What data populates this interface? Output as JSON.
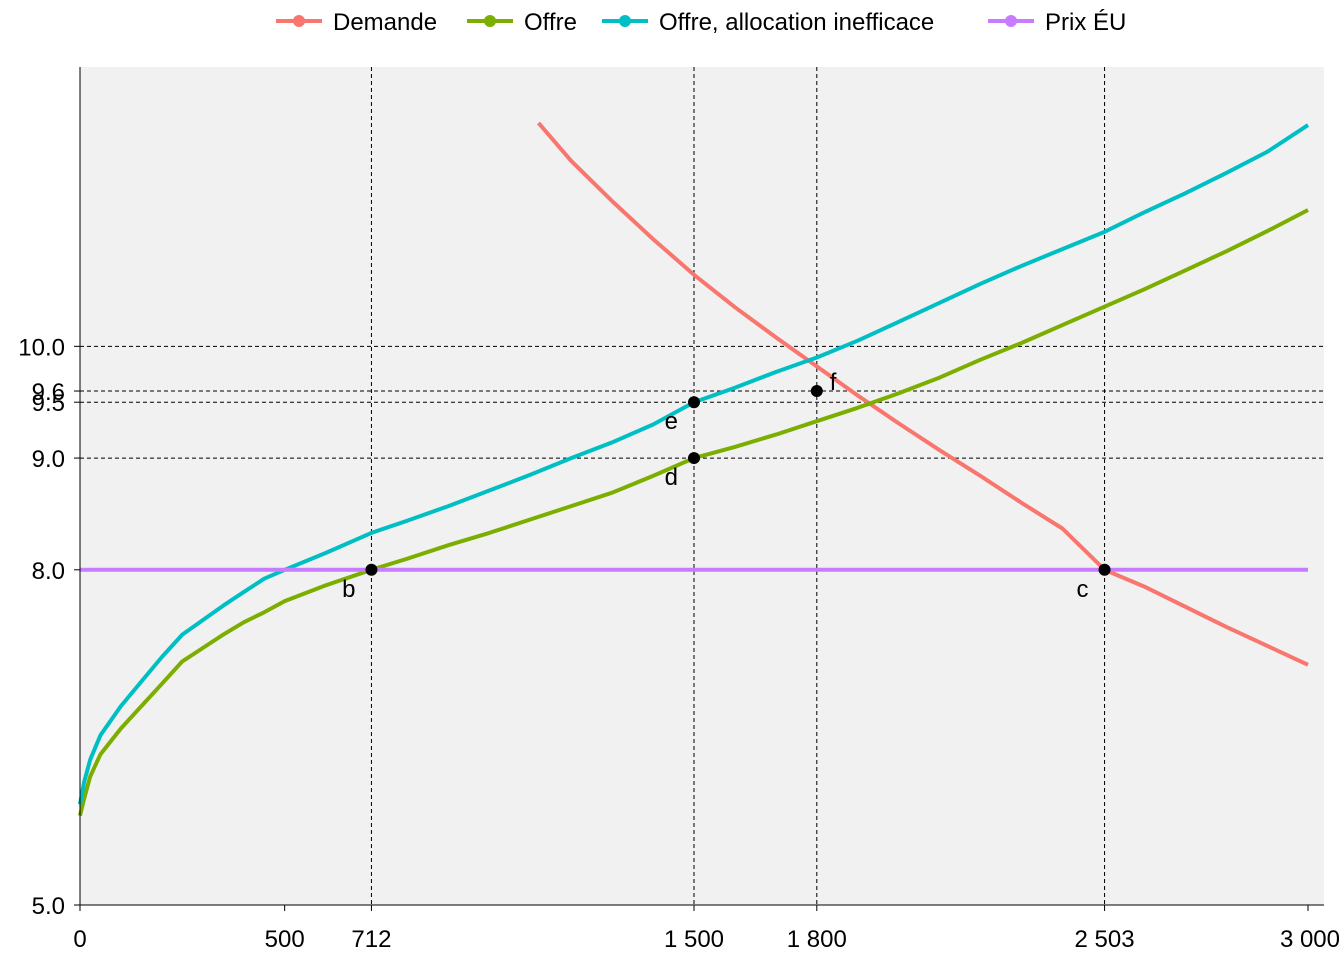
{
  "chart_data": {
    "type": "line",
    "title": "",
    "xlabel": "",
    "ylabel": "",
    "xlim": [
      0,
      3000
    ],
    "ylim": [
      5.0,
      12.5
    ],
    "x_ticks": [
      {
        "value": 0,
        "label": "0"
      },
      {
        "value": 500,
        "label": "500"
      },
      {
        "value": 712,
        "label": "712"
      },
      {
        "value": 1500,
        "label": "1 500"
      },
      {
        "value": 1800,
        "label": "1 800"
      },
      {
        "value": 2503,
        "label": "2 503"
      },
      {
        "value": 3000,
        "label": "3 000"
      }
    ],
    "y_ticks": [
      {
        "value": 5.0,
        "label": "5.0"
      },
      {
        "value": 8.0,
        "label": "8.0"
      },
      {
        "value": 9.0,
        "label": "9.0"
      },
      {
        "value": 9.5,
        "label": "9.5"
      },
      {
        "value": 9.6,
        "label": "9.6"
      },
      {
        "value": 10.0,
        "label": "10.0"
      }
    ],
    "reference_lines": {
      "vertical": [
        712,
        1500,
        1800,
        2503
      ],
      "horizontal": [
        9.0,
        9.5,
        9.6,
        10.0
      ]
    },
    "legend_position": "top",
    "grid": false,
    "series": [
      {
        "name": "Demande",
        "color": "#f8766d",
        "x": [
          1120,
          1200,
          1300,
          1400,
          1500,
          1600,
          1700,
          1800,
          1900,
          2000,
          2100,
          2200,
          2300,
          2400,
          2503,
          2600,
          2700,
          2800,
          2900,
          3000
        ],
        "y": [
          12.0,
          11.66,
          11.3,
          10.96,
          10.64,
          10.35,
          10.08,
          9.82,
          9.56,
          9.31,
          9.07,
          8.84,
          8.6,
          8.37,
          8.0,
          7.85,
          7.67,
          7.49,
          7.32,
          7.15
        ]
      },
      {
        "name": "Offre",
        "color": "#7cae00",
        "x": [
          0,
          10,
          25,
          50,
          100,
          150,
          200,
          250,
          300,
          350,
          400,
          450,
          500,
          600,
          712,
          800,
          900,
          1000,
          1100,
          1200,
          1300,
          1400,
          1500,
          1600,
          1700,
          1800,
          1900,
          2000,
          2100,
          2200,
          2300,
          2400,
          2500,
          2600,
          2700,
          2800,
          2900,
          3000
        ],
        "y": [
          5.8,
          5.95,
          6.15,
          6.35,
          6.58,
          6.78,
          6.98,
          7.18,
          7.3,
          7.42,
          7.53,
          7.62,
          7.72,
          7.86,
          8.0,
          8.1,
          8.22,
          8.33,
          8.45,
          8.57,
          8.69,
          8.84,
          9.0,
          9.1,
          9.21,
          9.33,
          9.45,
          9.58,
          9.72,
          9.88,
          10.03,
          10.19,
          10.35,
          10.51,
          10.68,
          10.85,
          11.03,
          11.22
        ]
      },
      {
        "name": "Offre, allocation inefficace",
        "color": "#00bfc4",
        "x": [
          0,
          10,
          25,
          50,
          100,
          150,
          200,
          250,
          300,
          350,
          400,
          450,
          500,
          600,
          712,
          800,
          900,
          1000,
          1100,
          1200,
          1300,
          1400,
          1500,
          1600,
          1700,
          1800,
          1900,
          2000,
          2100,
          2200,
          2300,
          2400,
          2500,
          2600,
          2700,
          2800,
          2900,
          3000
        ],
        "y": [
          5.9,
          6.1,
          6.3,
          6.52,
          6.78,
          7.0,
          7.22,
          7.42,
          7.55,
          7.68,
          7.8,
          7.92,
          8.0,
          8.15,
          8.33,
          8.44,
          8.57,
          8.71,
          8.85,
          9.0,
          9.14,
          9.3,
          9.5,
          9.63,
          9.77,
          9.9,
          10.05,
          10.22,
          10.39,
          10.56,
          10.72,
          10.87,
          11.02,
          11.2,
          11.37,
          11.55,
          11.74,
          11.98
        ]
      },
      {
        "name": "Prix ÉU",
        "color": "#c77cff",
        "x": [
          0,
          3000
        ],
        "y": [
          8.0,
          8.0
        ]
      }
    ],
    "points": [
      {
        "label": "b",
        "x": 712,
        "y": 8.0,
        "label_side": "below-left"
      },
      {
        "label": "c",
        "x": 2503,
        "y": 8.0,
        "label_side": "below-left"
      },
      {
        "label": "d",
        "x": 1500,
        "y": 9.0,
        "label_side": "below-left"
      },
      {
        "label": "e",
        "x": 1500,
        "y": 9.5,
        "label_side": "below-left"
      },
      {
        "label": "f",
        "x": 1800,
        "y": 9.6,
        "label_side": "right"
      }
    ]
  }
}
